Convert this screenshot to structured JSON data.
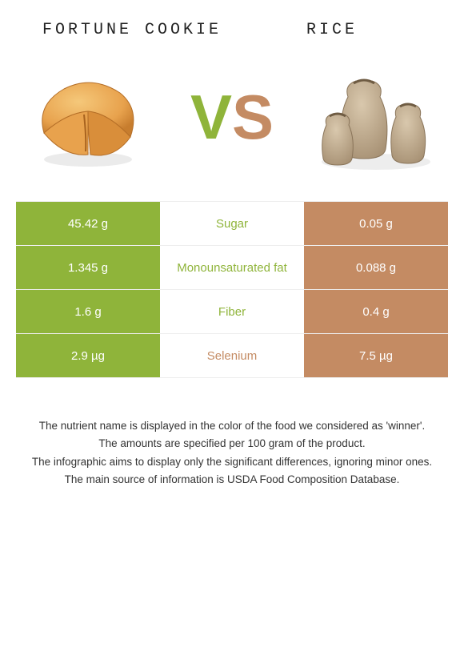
{
  "colors": {
    "left": "#8fb43a",
    "right": "#c48b63",
    "background": "#ffffff",
    "divider": "#eeeeee"
  },
  "foods": {
    "left": {
      "title": "Fortune cookie"
    },
    "right": {
      "title": "Rice"
    }
  },
  "vs": {
    "v": "V",
    "s": "S"
  },
  "rows": [
    {
      "nutrient": "Sugar",
      "left": "45.42 g",
      "right": "0.05 g",
      "winner": "left"
    },
    {
      "nutrient": "Monounsaturated fat",
      "left": "1.345 g",
      "right": "0.088 g",
      "winner": "left"
    },
    {
      "nutrient": "Fiber",
      "left": "1.6 g",
      "right": "0.4 g",
      "winner": "left"
    },
    {
      "nutrient": "Selenium",
      "left": "2.9 µg",
      "right": "7.5 µg",
      "winner": "right"
    }
  ],
  "footer": {
    "l1": "The nutrient name is displayed in the color of the food we considered as 'winner'.",
    "l2": "The amounts are specified per 100 gram of the product.",
    "l3": "The infographic aims to display only the significant differences, ignoring minor ones.",
    "l4": "The main source of information is USDA Food Composition Database."
  }
}
